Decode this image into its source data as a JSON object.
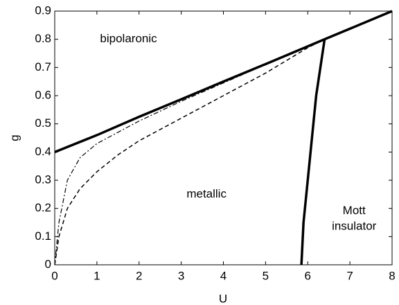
{
  "chart_data": {
    "type": "line",
    "xlabel": "U",
    "ylabel": "g",
    "xlim": [
      0,
      8
    ],
    "xticks": [
      0,
      1,
      2,
      3,
      4,
      5,
      6,
      7,
      8
    ],
    "ylim": [
      0,
      0.9
    ],
    "yticks": [
      0,
      0.1,
      0.2,
      0.3,
      0.4,
      0.5,
      0.6,
      0.7,
      0.8,
      0.9
    ],
    "series": [
      {
        "color": "#000000",
        "linewidth": 3.5,
        "dash": "solid",
        "x": [
          0,
          1,
          2,
          3,
          4,
          5,
          6,
          6.4,
          8
        ],
        "values": [
          0.4,
          0.46,
          0.525,
          0.587,
          0.65,
          0.712,
          0.775,
          0.8,
          0.9
        ]
      },
      {
        "color": "#000000",
        "linewidth": 3.5,
        "dash": "solid",
        "x": [
          5.85,
          5.9,
          6.0,
          6.2,
          6.4
        ],
        "values": [
          0,
          0.15,
          0.3,
          0.6,
          0.8
        ]
      },
      {
        "color": "#000000",
        "linewidth": 1.2,
        "dash": "dashdot",
        "x": [
          0,
          0.1,
          0.3,
          0.6,
          1,
          2,
          3,
          4,
          5,
          6,
          6.4
        ],
        "values": [
          0,
          0.15,
          0.3,
          0.38,
          0.43,
          0.51,
          0.58,
          0.645,
          0.71,
          0.775,
          0.8
        ]
      },
      {
        "color": "#000000",
        "linewidth": 1.5,
        "dash": "dashed",
        "x": [
          0,
          0.1,
          0.3,
          0.6,
          1,
          1.5,
          2,
          3,
          4,
          5,
          6,
          6.4
        ],
        "values": [
          0,
          0.1,
          0.2,
          0.27,
          0.33,
          0.39,
          0.44,
          0.52,
          0.6,
          0.68,
          0.77,
          0.8
        ]
      }
    ],
    "annotations": [
      {
        "text": "bipolaronic",
        "x": 1.75,
        "y": 0.8
      },
      {
        "text": "metallic",
        "x": 3.6,
        "y": 0.25
      },
      {
        "text": "Mott",
        "x": 7.1,
        "y": 0.19
      },
      {
        "text": "insulator",
        "x": 7.1,
        "y": 0.135
      }
    ]
  }
}
